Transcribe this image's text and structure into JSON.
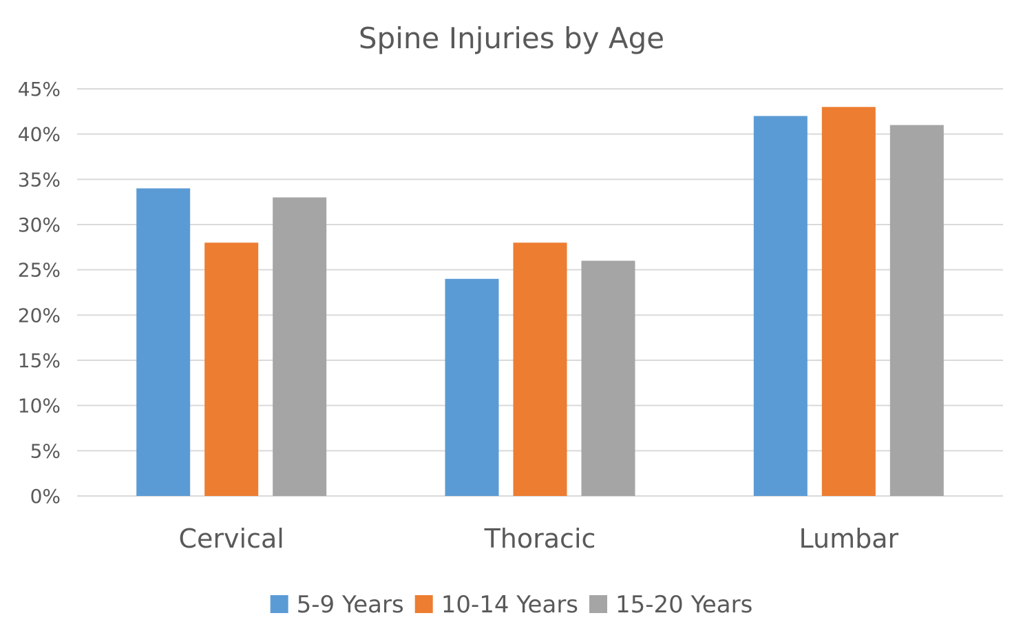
{
  "chart_data": {
    "type": "bar",
    "title": "Spine Injuries by Age",
    "xlabel": "",
    "ylabel": "",
    "categories": [
      "Cervical",
      "Thoracic",
      "Lumbar"
    ],
    "series": [
      {
        "name": "5-9 Years",
        "color": "#5b9bd5",
        "values": [
          34,
          24,
          42
        ]
      },
      {
        "name": "10-14 Years",
        "color": "#ed7d31",
        "values": [
          28,
          28,
          43
        ]
      },
      {
        "name": "15-20 Years",
        "color": "#a5a5a5",
        "values": [
          33,
          26,
          41
        ]
      }
    ],
    "ylim": [
      0,
      45
    ],
    "yticks": [
      0,
      5,
      10,
      15,
      20,
      25,
      30,
      35,
      40,
      45
    ],
    "ytick_labels": [
      "0%",
      "5%",
      "10%",
      "15%",
      "20%",
      "25%",
      "30%",
      "35%",
      "40%",
      "45%"
    ],
    "grid": true,
    "legend_position": "bottom"
  }
}
